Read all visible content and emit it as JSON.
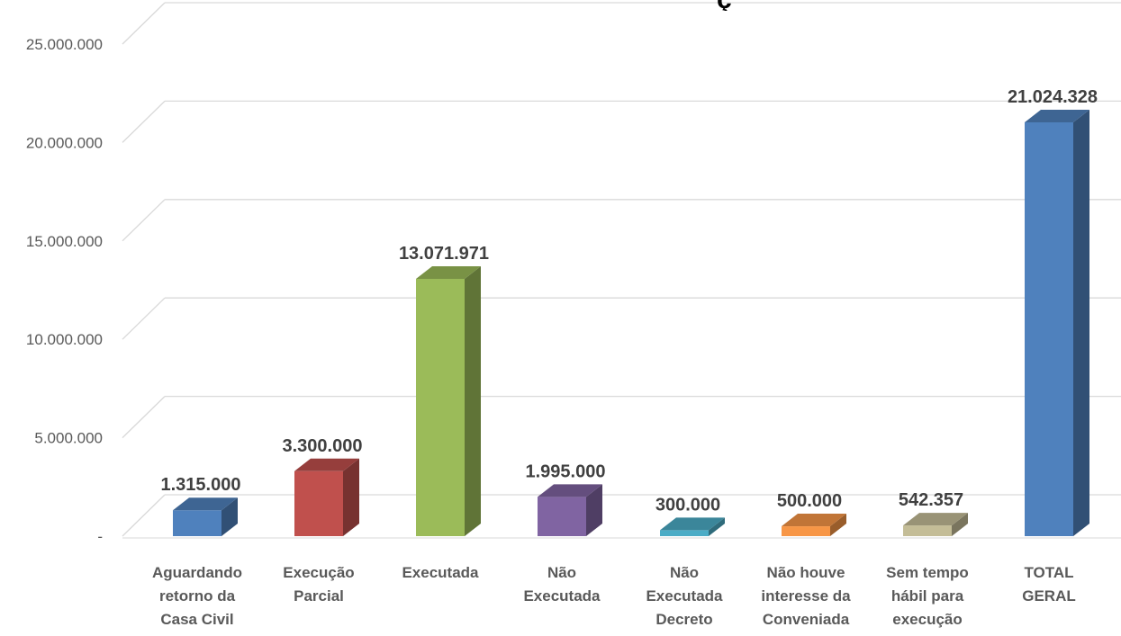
{
  "chart_data": {
    "type": "bar",
    "title_fragment": "ç",
    "categories": [
      "Aguardando\nretorno da\nCasa Civil",
      "Execução\nParcial",
      "Executada",
      "Não\nExecutada",
      "Não\nExecutada\nDecreto",
      "Não houve\ninteresse da\nConveniada",
      "Sem tempo\nhábil para\nexecução",
      "TOTAL\nGERAL"
    ],
    "values": [
      1315000,
      3300000,
      13071971,
      1995000,
      300000,
      500000,
      542357,
      21024328
    ],
    "value_labels": [
      "1.315.000",
      "3.300.000",
      "13.071.971",
      "1.995.000",
      "300.000",
      "500.000",
      "542.357",
      "21.024.328"
    ],
    "colors": [
      "#4F81BD",
      "#C0504D",
      "#9BBB59",
      "#8064A2",
      "#4BACC6",
      "#F79646",
      "#C4BD97",
      "#4F81BD"
    ],
    "y_ticks": [
      {
        "value": 0,
        "label": "-"
      },
      {
        "value": 5000000,
        "label": "5.000.000"
      },
      {
        "value": 10000000,
        "label": "10.000.000"
      },
      {
        "value": 15000000,
        "label": "15.000.000"
      },
      {
        "value": 20000000,
        "label": "20.000.000"
      },
      {
        "value": 25000000,
        "label": "25.000.000"
      }
    ],
    "ylim": [
      0,
      25000000
    ],
    "grid": true,
    "legend": "none",
    "style": "3d-column"
  }
}
